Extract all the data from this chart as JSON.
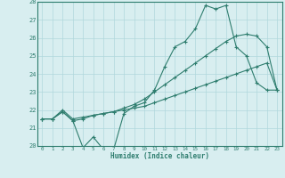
{
  "xlabel": "Humidex (Indice chaleur)",
  "x": [
    0,
    1,
    2,
    3,
    4,
    5,
    6,
    7,
    8,
    9,
    10,
    11,
    12,
    13,
    14,
    15,
    16,
    17,
    18,
    19,
    20,
    21,
    22,
    23
  ],
  "line1": [
    21.5,
    21.5,
    21.9,
    21.4,
    19.9,
    20.5,
    19.8,
    19.8,
    21.8,
    22.2,
    22.4,
    23.1,
    24.4,
    25.5,
    25.8,
    26.5,
    27.8,
    27.6,
    27.8,
    25.5,
    25.0,
    23.5,
    23.1,
    23.1
  ],
  "line2": [
    21.5,
    21.5,
    21.9,
    21.4,
    21.5,
    21.7,
    21.8,
    21.9,
    22.0,
    22.1,
    22.2,
    22.4,
    22.6,
    22.8,
    23.0,
    23.2,
    23.4,
    23.6,
    23.8,
    24.0,
    24.2,
    24.4,
    24.6,
    23.1
  ],
  "line3": [
    21.5,
    21.5,
    22.0,
    21.5,
    21.6,
    21.7,
    21.8,
    21.9,
    22.1,
    22.3,
    22.6,
    23.0,
    23.4,
    23.8,
    24.2,
    24.6,
    25.0,
    25.4,
    25.8,
    26.1,
    26.2,
    26.1,
    25.5,
    23.1
  ],
  "line_color": "#2e7d6e",
  "bg_color": "#d8eef0",
  "grid_color": "#b0d8dc",
  "ylim": [
    20,
    28
  ],
  "yticks": [
    20,
    21,
    22,
    23,
    24,
    25,
    26,
    27,
    28
  ],
  "xlim": [
    -0.5,
    23.5
  ],
  "xticks": [
    0,
    1,
    2,
    3,
    4,
    5,
    6,
    7,
    8,
    9,
    10,
    11,
    12,
    13,
    14,
    15,
    16,
    17,
    18,
    19,
    20,
    21,
    22,
    23
  ]
}
